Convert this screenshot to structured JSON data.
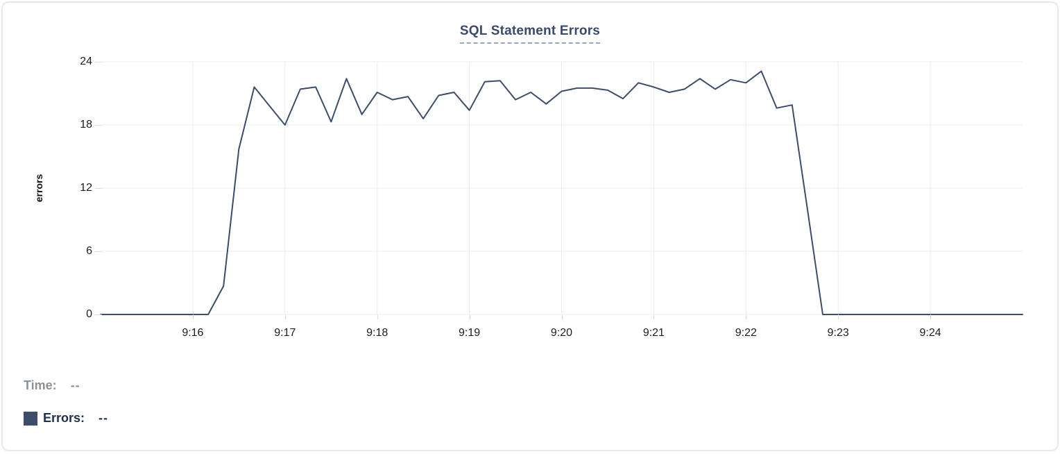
{
  "card": {
    "type": "chart-card"
  },
  "chart_data": {
    "type": "line",
    "title": "SQL Statement Errors",
    "xlabel": "",
    "ylabel": "errors",
    "ylim": [
      0,
      24
    ],
    "y_ticks": [
      0,
      6,
      12,
      18,
      24
    ],
    "x_domain": [
      "9:15:00",
      "9:25:00"
    ],
    "x_ticks": [
      "9:16",
      "9:17",
      "9:18",
      "9:19",
      "9:20",
      "9:21",
      "9:22",
      "9:23",
      "9:24"
    ],
    "grid": true,
    "line_color": "#3d4c6b",
    "grid_color": "#ededed",
    "legend_position": "bottom-left",
    "series": [
      {
        "name": "Errors",
        "times": [
          "9:15:00",
          "9:15:10",
          "9:15:20",
          "9:15:30",
          "9:15:40",
          "9:15:50",
          "9:16:00",
          "9:16:10",
          "9:16:20",
          "9:16:30",
          "9:16:40",
          "9:16:50",
          "9:17:00",
          "9:17:10",
          "9:17:20",
          "9:17:30",
          "9:17:40",
          "9:17:50",
          "9:18:00",
          "9:18:10",
          "9:18:20",
          "9:18:30",
          "9:18:40",
          "9:18:50",
          "9:19:00",
          "9:19:10",
          "9:19:20",
          "9:19:30",
          "9:19:40",
          "9:19:50",
          "9:20:00",
          "9:20:10",
          "9:20:20",
          "9:20:30",
          "9:20:40",
          "9:20:50",
          "9:21:00",
          "9:21:10",
          "9:21:20",
          "9:21:30",
          "9:21:40",
          "9:21:50",
          "9:22:00",
          "9:22:10",
          "9:22:20",
          "9:22:30",
          "9:22:40",
          "9:22:50",
          "9:23:00",
          "9:23:10",
          "9:23:20",
          "9:23:30",
          "9:23:40",
          "9:23:50",
          "9:24:00",
          "9:24:10",
          "9:24:20",
          "9:24:30",
          "9:24:40",
          "9:24:50",
          "9:25:00"
        ],
        "values": [
          0,
          0,
          0,
          0,
          0,
          0,
          0,
          0,
          2.7,
          15.7,
          21.6,
          19.8,
          18,
          21.4,
          21.6,
          18.3,
          22.4,
          19,
          21.1,
          20.4,
          20.7,
          18.6,
          20.8,
          21.1,
          19.4,
          22.1,
          22.2,
          20.4,
          21.1,
          20,
          21.2,
          21.5,
          21.5,
          21.3,
          20.5,
          22,
          21.6,
          21.1,
          21.4,
          22.4,
          21.4,
          22.3,
          22,
          23.1,
          19.6,
          19.9,
          10,
          0,
          0,
          0,
          0,
          0,
          0,
          0,
          0,
          0,
          0,
          0,
          0,
          0,
          0
        ]
      }
    ]
  },
  "footer": {
    "time_label": "Time:",
    "time_value": "--",
    "errors_label": "Errors:",
    "errors_value": "--"
  },
  "colors": {
    "title": "#3a4a6b",
    "title_underline": "#99a5c0",
    "line": "#3d4c6b",
    "grid": "#ededed",
    "time_label_gray": "#8c9196",
    "errors_label_navy": "#22304f",
    "card_border": "#e8e9ec"
  }
}
